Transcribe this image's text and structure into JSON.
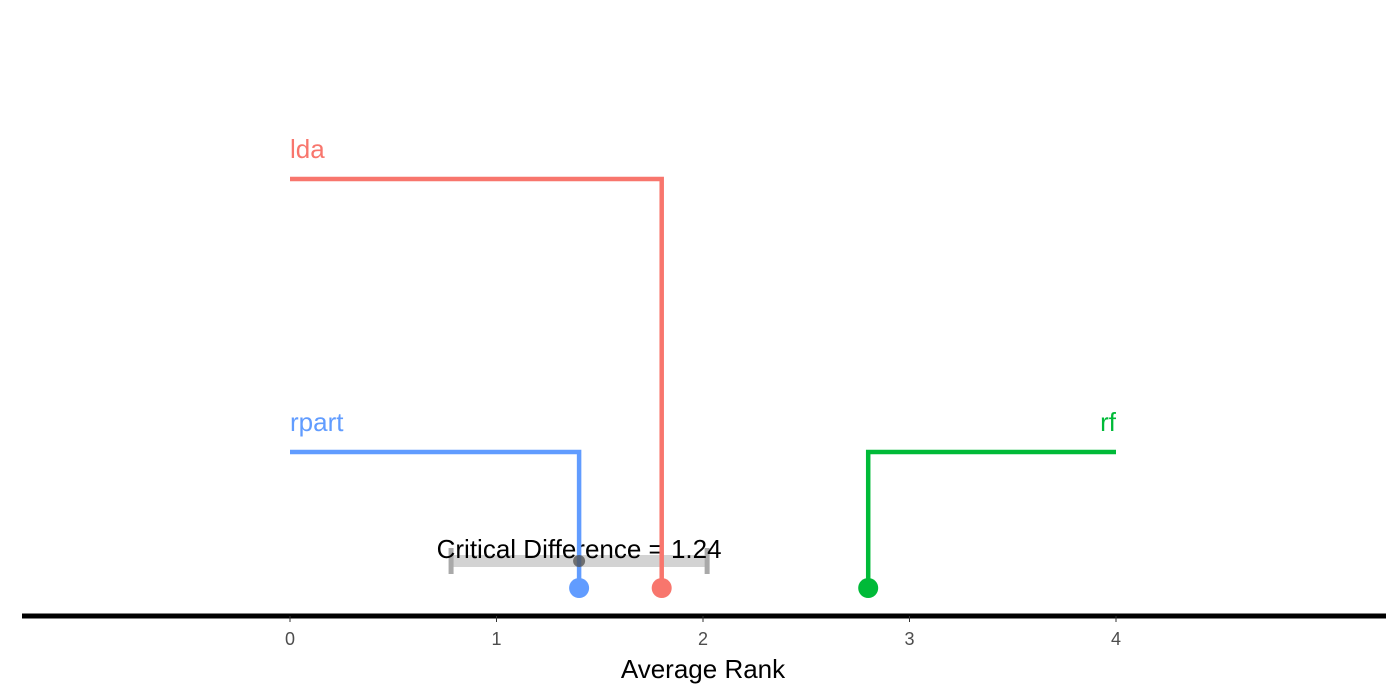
{
  "chart_data": {
    "type": "critical-difference",
    "xlabel": "Average Rank",
    "xlim": [
      0,
      4
    ],
    "ticks": [
      "0",
      "1",
      "2",
      "3",
      "4"
    ],
    "critical_difference": {
      "label": "Critical Difference = 1.24",
      "value": 1.24,
      "center": 1.4
    },
    "learners": [
      {
        "name": "lda",
        "rank": 1.8,
        "side": "left",
        "color": "#F8766D"
      },
      {
        "name": "rpart",
        "rank": 1.4,
        "side": "left",
        "color": "#619CFF"
      },
      {
        "name": "rf",
        "rank": 2.8,
        "side": "right",
        "color": "#00BA38"
      }
    ],
    "colors": {
      "axis": "#000000",
      "cd_bar": "#d3d3d3",
      "cd_caps": "#a9a9a9",
      "cd_center": "#4d4d4d"
    }
  }
}
